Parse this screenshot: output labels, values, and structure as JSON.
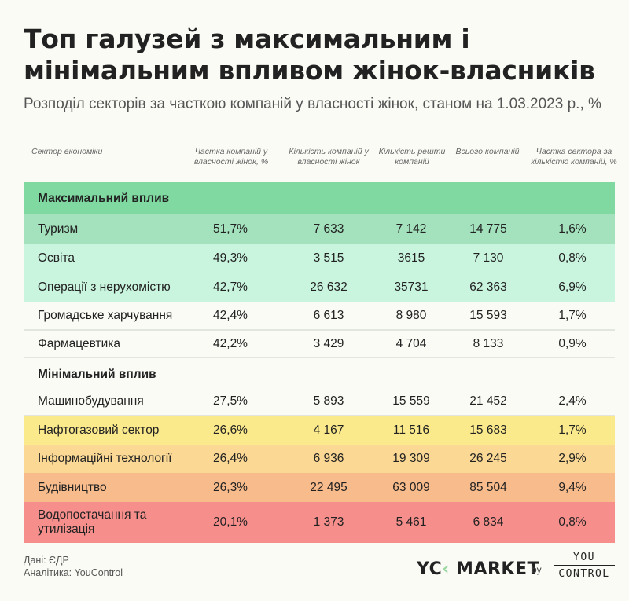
{
  "title": "Топ галузей з максимальним і мінімальним впливом жінок-власників",
  "subtitle": "Розподіл секторів за часткою компаній у власності жінок, станом на 1.03.2023 р., %",
  "columns": [
    "Сектор економіки",
    "Частка компаній у власності жінок, %",
    "Кількість компаній у власності жінок",
    "Кількість решти компаній",
    "Всього компаній",
    "Частка сектора за кількістю компаній, %"
  ],
  "groups": {
    "max": "Максимальний вплив",
    "min": "Мінімальний вплив"
  },
  "chart_data": {
    "type": "table",
    "rows": [
      {
        "sector": "Туризм",
        "share": "51,7%",
        "women": "7 633",
        "others": "7 142",
        "total": "14 775",
        "sector_share": "1,6%",
        "color": "#a3e2bd"
      },
      {
        "sector": "Освіта",
        "share": "49,3%",
        "women": "3 515",
        "others": "3615",
        "total": "7 130",
        "sector_share": "0,8%",
        "color": "#c9f5df"
      },
      {
        "sector": "Операції з нерухомістю",
        "share": "42,7%",
        "women": "26 632",
        "others": "35731",
        "total": "62 363",
        "sector_share": "6,9%",
        "color": "#c9f5df"
      },
      {
        "sector": "Громадське харчування",
        "share": "42,4%",
        "women": "6 613",
        "others": "8 980",
        "total": "15 593",
        "sector_share": "1,7%",
        "color": ""
      },
      {
        "sector": "Фармацевтика",
        "share": "42,2%",
        "women": "3 429",
        "others": "4 704",
        "total": "8 133",
        "sector_share": "0,9%",
        "color": ""
      },
      {
        "sector": "Машинобудування",
        "share": "27,5%",
        "women": "5 893",
        "others": "15 559",
        "total": "21 452",
        "sector_share": "2,4%",
        "color": ""
      },
      {
        "sector": "Нафтогазовий сектор",
        "share": "26,6%",
        "women": "4 167",
        "others": "11 516",
        "total": "15 683",
        "sector_share": "1,7%",
        "color": "#fbea8c"
      },
      {
        "sector": "Інформаційні технології",
        "share": "26,4%",
        "women": "6 936",
        "others": "19 309",
        "total": "26 245",
        "sector_share": "2,9%",
        "color": "#fbd894"
      },
      {
        "sector": "Будівництво",
        "share": "26,3%",
        "women": "22 495",
        "others": "63 009",
        "total": "85 504",
        "sector_share": "9,4%",
        "color": "#f8bc8c"
      },
      {
        "sector": "Водопостачання та утилізація",
        "share": "20,1%",
        "women": "1 373",
        "others": "5 461",
        "total": "6 834",
        "sector_share": "0,8%",
        "color": "#f68f8c"
      }
    ]
  },
  "colors": {
    "group_max_band": "#7fd9a1"
  },
  "footer": {
    "source": "Дані: ЄДР",
    "analytics": "Аналітика: YouControl"
  },
  "logos": {
    "market_left": "YC",
    "market_mark": "‹",
    "market_right": "MARKET",
    "by": "by",
    "yc_top": "YOU",
    "yc_bottom": "CONTROL"
  }
}
